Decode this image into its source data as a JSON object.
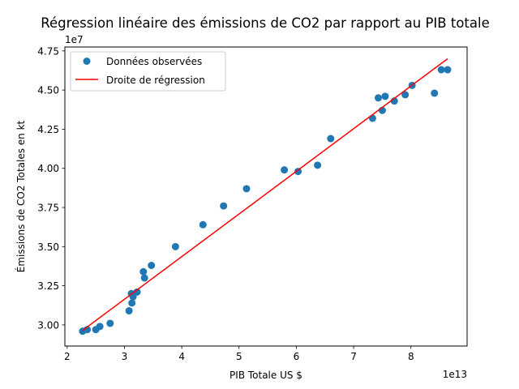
{
  "chart_data": {
    "type": "scatter",
    "title": "Régression linéaire des émissions de CO2 par rapport au PIB totale",
    "xlabel": "PIB Totale US $",
    "ylabel": "Émissions de CO2 Totales en kt",
    "x_offset_label": "1e13",
    "y_offset_label": "1e7",
    "xlim": [
      1.96,
      8.98
    ],
    "ylim": [
      2.865,
      4.775
    ],
    "x_ticks": [
      2,
      3,
      4,
      5,
      6,
      7,
      8
    ],
    "x_tick_labels": [
      "2",
      "3",
      "4",
      "5",
      "6",
      "7",
      "8"
    ],
    "y_ticks": [
      3.0,
      3.25,
      3.5,
      3.75,
      4.0,
      4.25,
      4.5,
      4.75
    ],
    "y_tick_labels": [
      "3.00",
      "3.25",
      "3.50",
      "3.75",
      "4.00",
      "4.25",
      "4.50",
      "4.75"
    ],
    "grid": false,
    "legend_position": "upper-left",
    "series": [
      {
        "name": "Données observées",
        "kind": "scatter",
        "color": "#1f77b4",
        "x": [
          2.27,
          2.35,
          2.5,
          2.57,
          2.75,
          3.08,
          3.12,
          3.13,
          3.15,
          3.22,
          3.33,
          3.35,
          3.47,
          3.89,
          4.37,
          4.73,
          5.13,
          5.79,
          6.03,
          6.37,
          6.6,
          7.33,
          7.43,
          7.5,
          7.55,
          7.71,
          7.9,
          8.02,
          8.41,
          8.53,
          8.64
        ],
        "y": [
          2.96,
          2.97,
          2.97,
          2.99,
          3.01,
          3.09,
          3.2,
          3.14,
          3.18,
          3.21,
          3.34,
          3.3,
          3.38,
          3.5,
          3.64,
          3.76,
          3.87,
          3.99,
          3.98,
          4.02,
          4.19,
          4.32,
          4.45,
          4.37,
          4.46,
          4.43,
          4.47,
          4.53,
          4.48,
          4.63,
          4.63
        ]
      },
      {
        "name": "Droite de régression",
        "kind": "line",
        "color": "#ff0000",
        "x": [
          2.27,
          8.64
        ],
        "y": [
          2.965,
          4.7
        ]
      }
    ]
  }
}
